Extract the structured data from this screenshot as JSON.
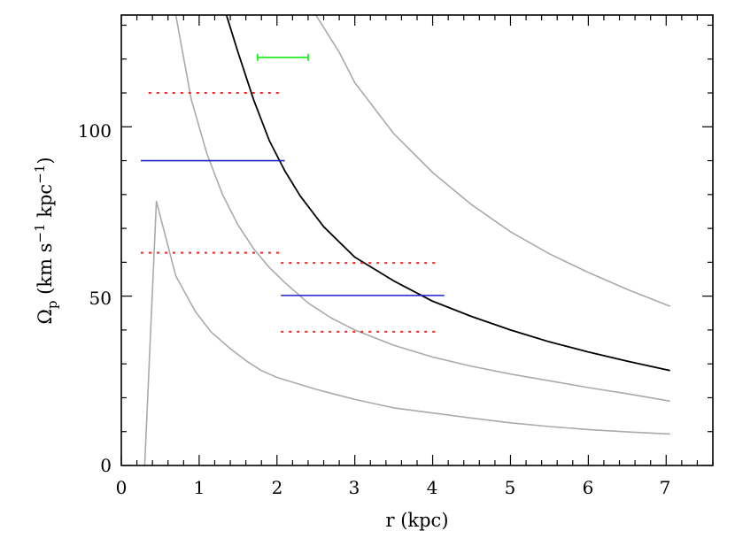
{
  "chart_data": {
    "type": "line",
    "title": "",
    "xlabel": "r (kpc)",
    "ylabel": {
      "base": "Ω",
      "sub": "p",
      "units_open": " (km s",
      "exp1": "−1",
      "mid": " kpc",
      "exp2": "−1",
      "units_close": ")"
    },
    "xlim": [
      0,
      7.6
    ],
    "ylim": [
      0,
      133
    ],
    "x_ticks": [
      "0",
      "1",
      "2",
      "3",
      "4",
      "5",
      "6",
      "7"
    ],
    "y_ticks": [
      "0",
      "50",
      "100"
    ],
    "grid": false,
    "colors": {
      "gray_curve": "#aaaaaa",
      "black_curve": "#000000",
      "blue_segment": "#1f1fc8",
      "red_dotted": "#ff2020",
      "green_errorbar": "#22ee22"
    },
    "series": [
      {
        "style": "gray",
        "x": [
          0.3,
          0.45,
          0.7,
          0.95,
          1.15,
          1.4,
          1.6,
          1.8,
          2.0,
          2.5,
          3.0,
          3.5,
          4.0,
          4.5,
          5.0,
          5.5,
          6.0,
          6.5,
          7.05
        ],
        "y": [
          0,
          78,
          56,
          45.5,
          39.5,
          34.5,
          31,
          28,
          26,
          22.5,
          19.5,
          17,
          15.5,
          14,
          12.6,
          11.5,
          10.6,
          9.9,
          9.3
        ]
      },
      {
        "style": "gray",
        "x": [
          0.7,
          0.9,
          1.1,
          1.3,
          1.5,
          1.7,
          1.9,
          2.1,
          2.4,
          2.7,
          3.0,
          3.5,
          4.0,
          4.5,
          5.0,
          5.5,
          6.0,
          6.5,
          7.05
        ],
        "y": [
          133,
          108,
          92,
          80,
          71,
          64,
          58.5,
          54,
          48,
          43.5,
          40,
          35.5,
          32,
          29.3,
          27,
          25,
          23,
          21.2,
          19
        ]
      },
      {
        "style": "black",
        "x": [
          1.35,
          1.5,
          1.7,
          1.9,
          2.1,
          2.3,
          2.6,
          3.0,
          3.5,
          4.0,
          4.5,
          5.0,
          5.5,
          6.0,
          6.5,
          7.05
        ],
        "y": [
          133,
          122,
          108,
          96,
          87,
          79.5,
          70.5,
          61.5,
          54.5,
          48.5,
          44,
          40,
          36.5,
          33.5,
          30.8,
          28
        ]
      },
      {
        "style": "gray",
        "x": [
          2.5,
          2.8,
          3.0,
          3.5,
          4.0,
          4.5,
          5.0,
          5.5,
          6.0,
          6.5,
          7.05
        ],
        "y": [
          133,
          122,
          113,
          98,
          86.5,
          77,
          69,
          62.5,
          57,
          52,
          47
        ]
      }
    ],
    "segments": [
      {
        "style": "blue",
        "x": [
          0.25,
          2.1
        ],
        "y": 90
      },
      {
        "style": "blue",
        "x": [
          2.05,
          4.15
        ],
        "y": 50.2
      },
      {
        "style": "red",
        "x": [
          0.35,
          2.05
        ],
        "y": 110
      },
      {
        "style": "red",
        "x": [
          0.25,
          2.05
        ],
        "y": 62.8
      },
      {
        "style": "red",
        "x": [
          2.05,
          4.05
        ],
        "y": 59.8
      },
      {
        "style": "red",
        "x": [
          2.05,
          4.05
        ],
        "y": 39.5
      }
    ],
    "errorbars": [
      {
        "style": "green",
        "x": [
          1.75,
          2.4
        ],
        "y": 120.5
      }
    ]
  }
}
